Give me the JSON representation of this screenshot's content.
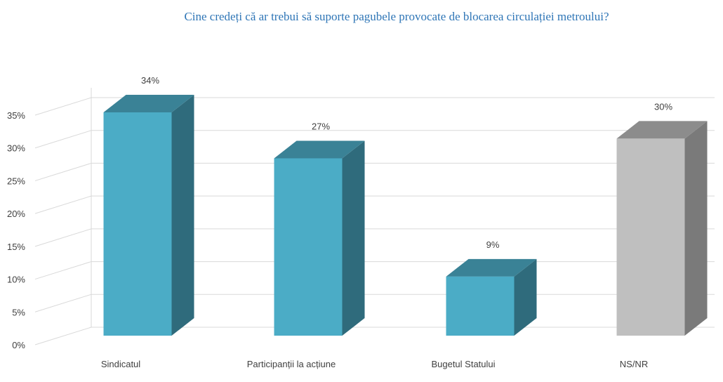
{
  "chart_data": {
    "type": "bar",
    "title": "Cine credeți că ar trebui să suporte pagubele provocate de blocarea circulației metroului?",
    "categories": [
      "Sindicatul",
      "Participanții la acțiune",
      "Bugetul Statului",
      "NS/NR"
    ],
    "values": [
      34,
      27,
      9,
      30
    ],
    "data_labels": [
      "34%",
      "27%",
      "9%",
      "30%"
    ],
    "y_ticks": [
      "0%",
      "5%",
      "10%",
      "15%",
      "20%",
      "25%",
      "30%",
      "35%"
    ],
    "ylim": [
      0,
      35
    ],
    "grid": true,
    "legend": "none",
    "three_d": true,
    "colors": {
      "front": [
        "#4BACC6",
        "#4BACC6",
        "#4BACC6",
        "#BFBFBF"
      ],
      "top": [
        "#3A8296",
        "#3A8296",
        "#3A8296",
        "#8C8C8C"
      ],
      "side": [
        "#2F6B7C",
        "#2F6B7C",
        "#2F6B7C",
        "#7A7A7A"
      ],
      "gridline": "#D9D9D9",
      "title": "#2E75B6"
    }
  }
}
